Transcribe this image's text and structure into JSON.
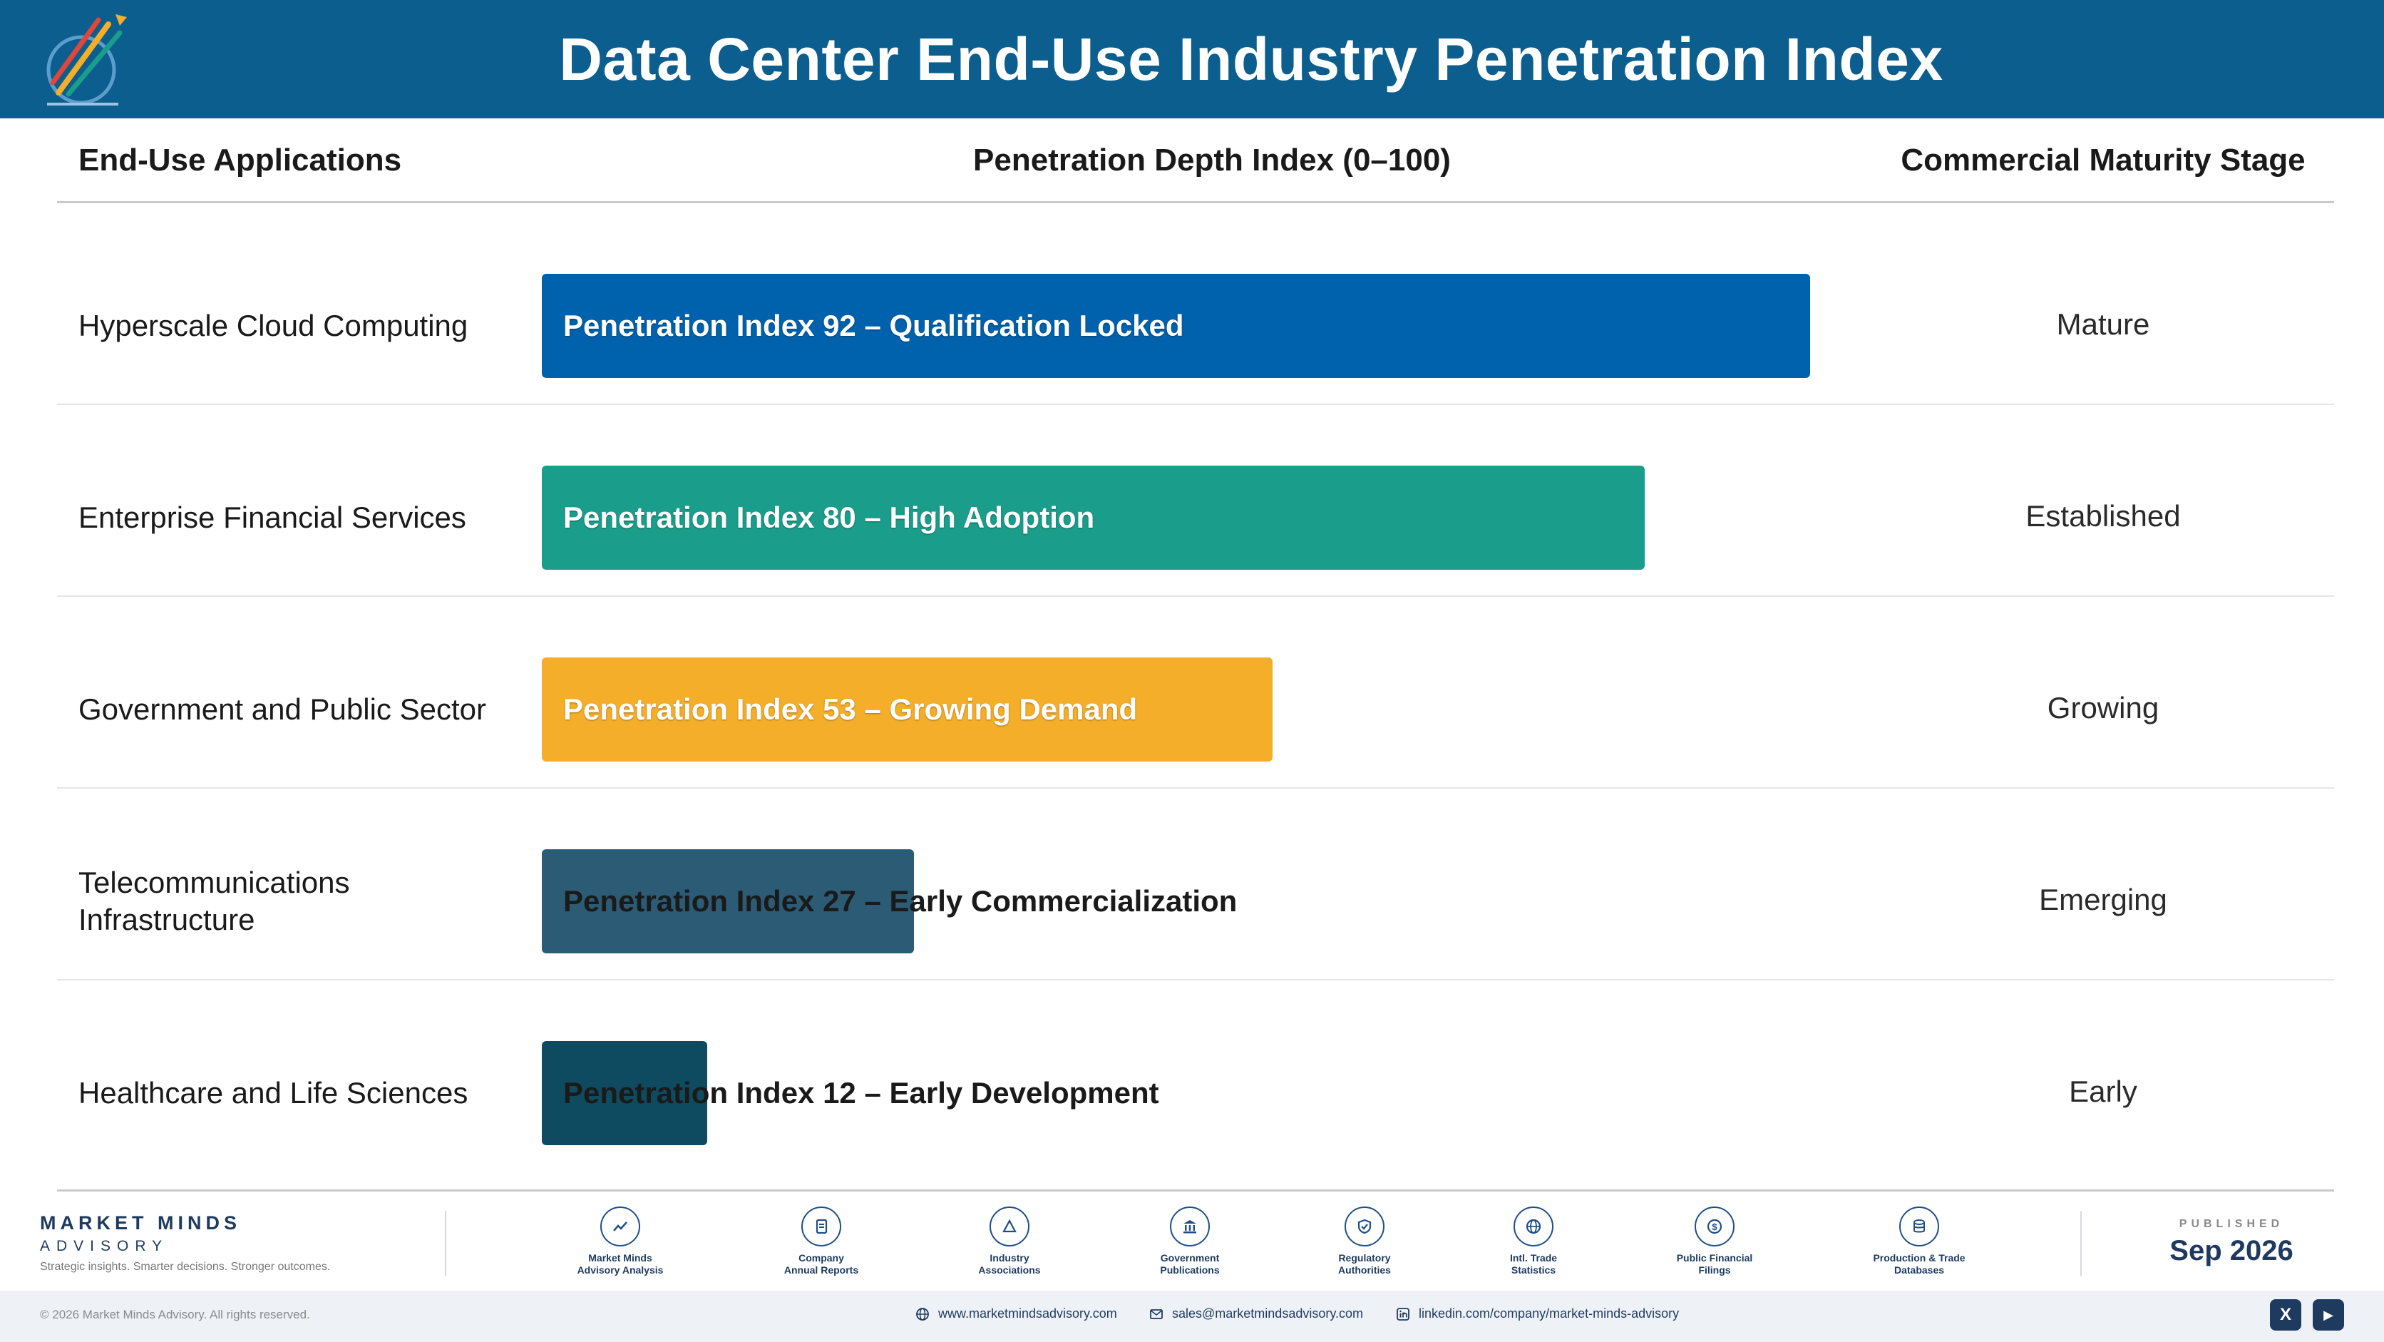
{
  "header": {
    "title": "Data Center End-Use Industry Penetration Index"
  },
  "columns": {
    "applications": "End-Use Applications",
    "penetration": "Penetration Depth Index (0–100)",
    "maturity": "Commercial Maturity Stage"
  },
  "chart_data": {
    "type": "bar",
    "orientation": "horizontal",
    "categories": [
      "Hyperscale Cloud Computing",
      "Enterprise Financial Services",
      "Government and Public Sector",
      "Telecommunications Infrastructure",
      "Healthcare and Life Sciences"
    ],
    "values": [
      92,
      80,
      53,
      27,
      12
    ],
    "data_labels": [
      "Penetration Index 92 – Qualification Locked",
      "Penetration Index 80 – High Adoption",
      "Penetration Index 53 – Growing Demand",
      "Penetration Index 27 – Early Commercialization",
      "Penetration Index 12 – Early Development"
    ],
    "maturity_stages": [
      "Mature",
      "Established",
      "Growing",
      "Emerging",
      "Early"
    ],
    "colors": [
      "#0062ac",
      "#1a9e8b",
      "#f5ae2a",
      "#2c5b76",
      "#0f4b60"
    ],
    "xlim": [
      0,
      100
    ],
    "grid": false,
    "legend": "none"
  },
  "footer": {
    "brand_name": "MARKET MINDS",
    "brand_sub": "ADVISORY",
    "tagline": "Strategic insights. Smarter decisions. Stronger outcomes.",
    "sources": [
      {
        "icon": "trend-chart-icon",
        "line1": "Market Minds",
        "line2": "Advisory Analysis"
      },
      {
        "icon": "document-icon",
        "line1": "Company",
        "line2": "Annual Reports"
      },
      {
        "icon": "network-icon",
        "line1": "Industry",
        "line2": "Associations"
      },
      {
        "icon": "government-building-icon",
        "line1": "Government",
        "line2": "Publications"
      },
      {
        "icon": "shield-check-icon",
        "line1": "Regulatory",
        "line2": "Authorities"
      },
      {
        "icon": "globe-icon",
        "line1": "Intl. Trade",
        "line2": "Statistics"
      },
      {
        "icon": "dollar-icon",
        "line1": "Public Financial",
        "line2": "Filings"
      },
      {
        "icon": "database-icon",
        "line1": "Production & Trade",
        "line2": "Databases"
      }
    ],
    "published_label": "PUBLISHED",
    "published_date": "Sep 2026",
    "copyright": "© 2026 Market Minds Advisory. All rights reserved.",
    "website": "www.marketmindsadvisory.com",
    "email": "sales@marketmindsadvisory.com",
    "linkedin": "linkedin.com/company/market-minds-advisory",
    "social_x": "X",
    "social_youtube": "▶"
  }
}
